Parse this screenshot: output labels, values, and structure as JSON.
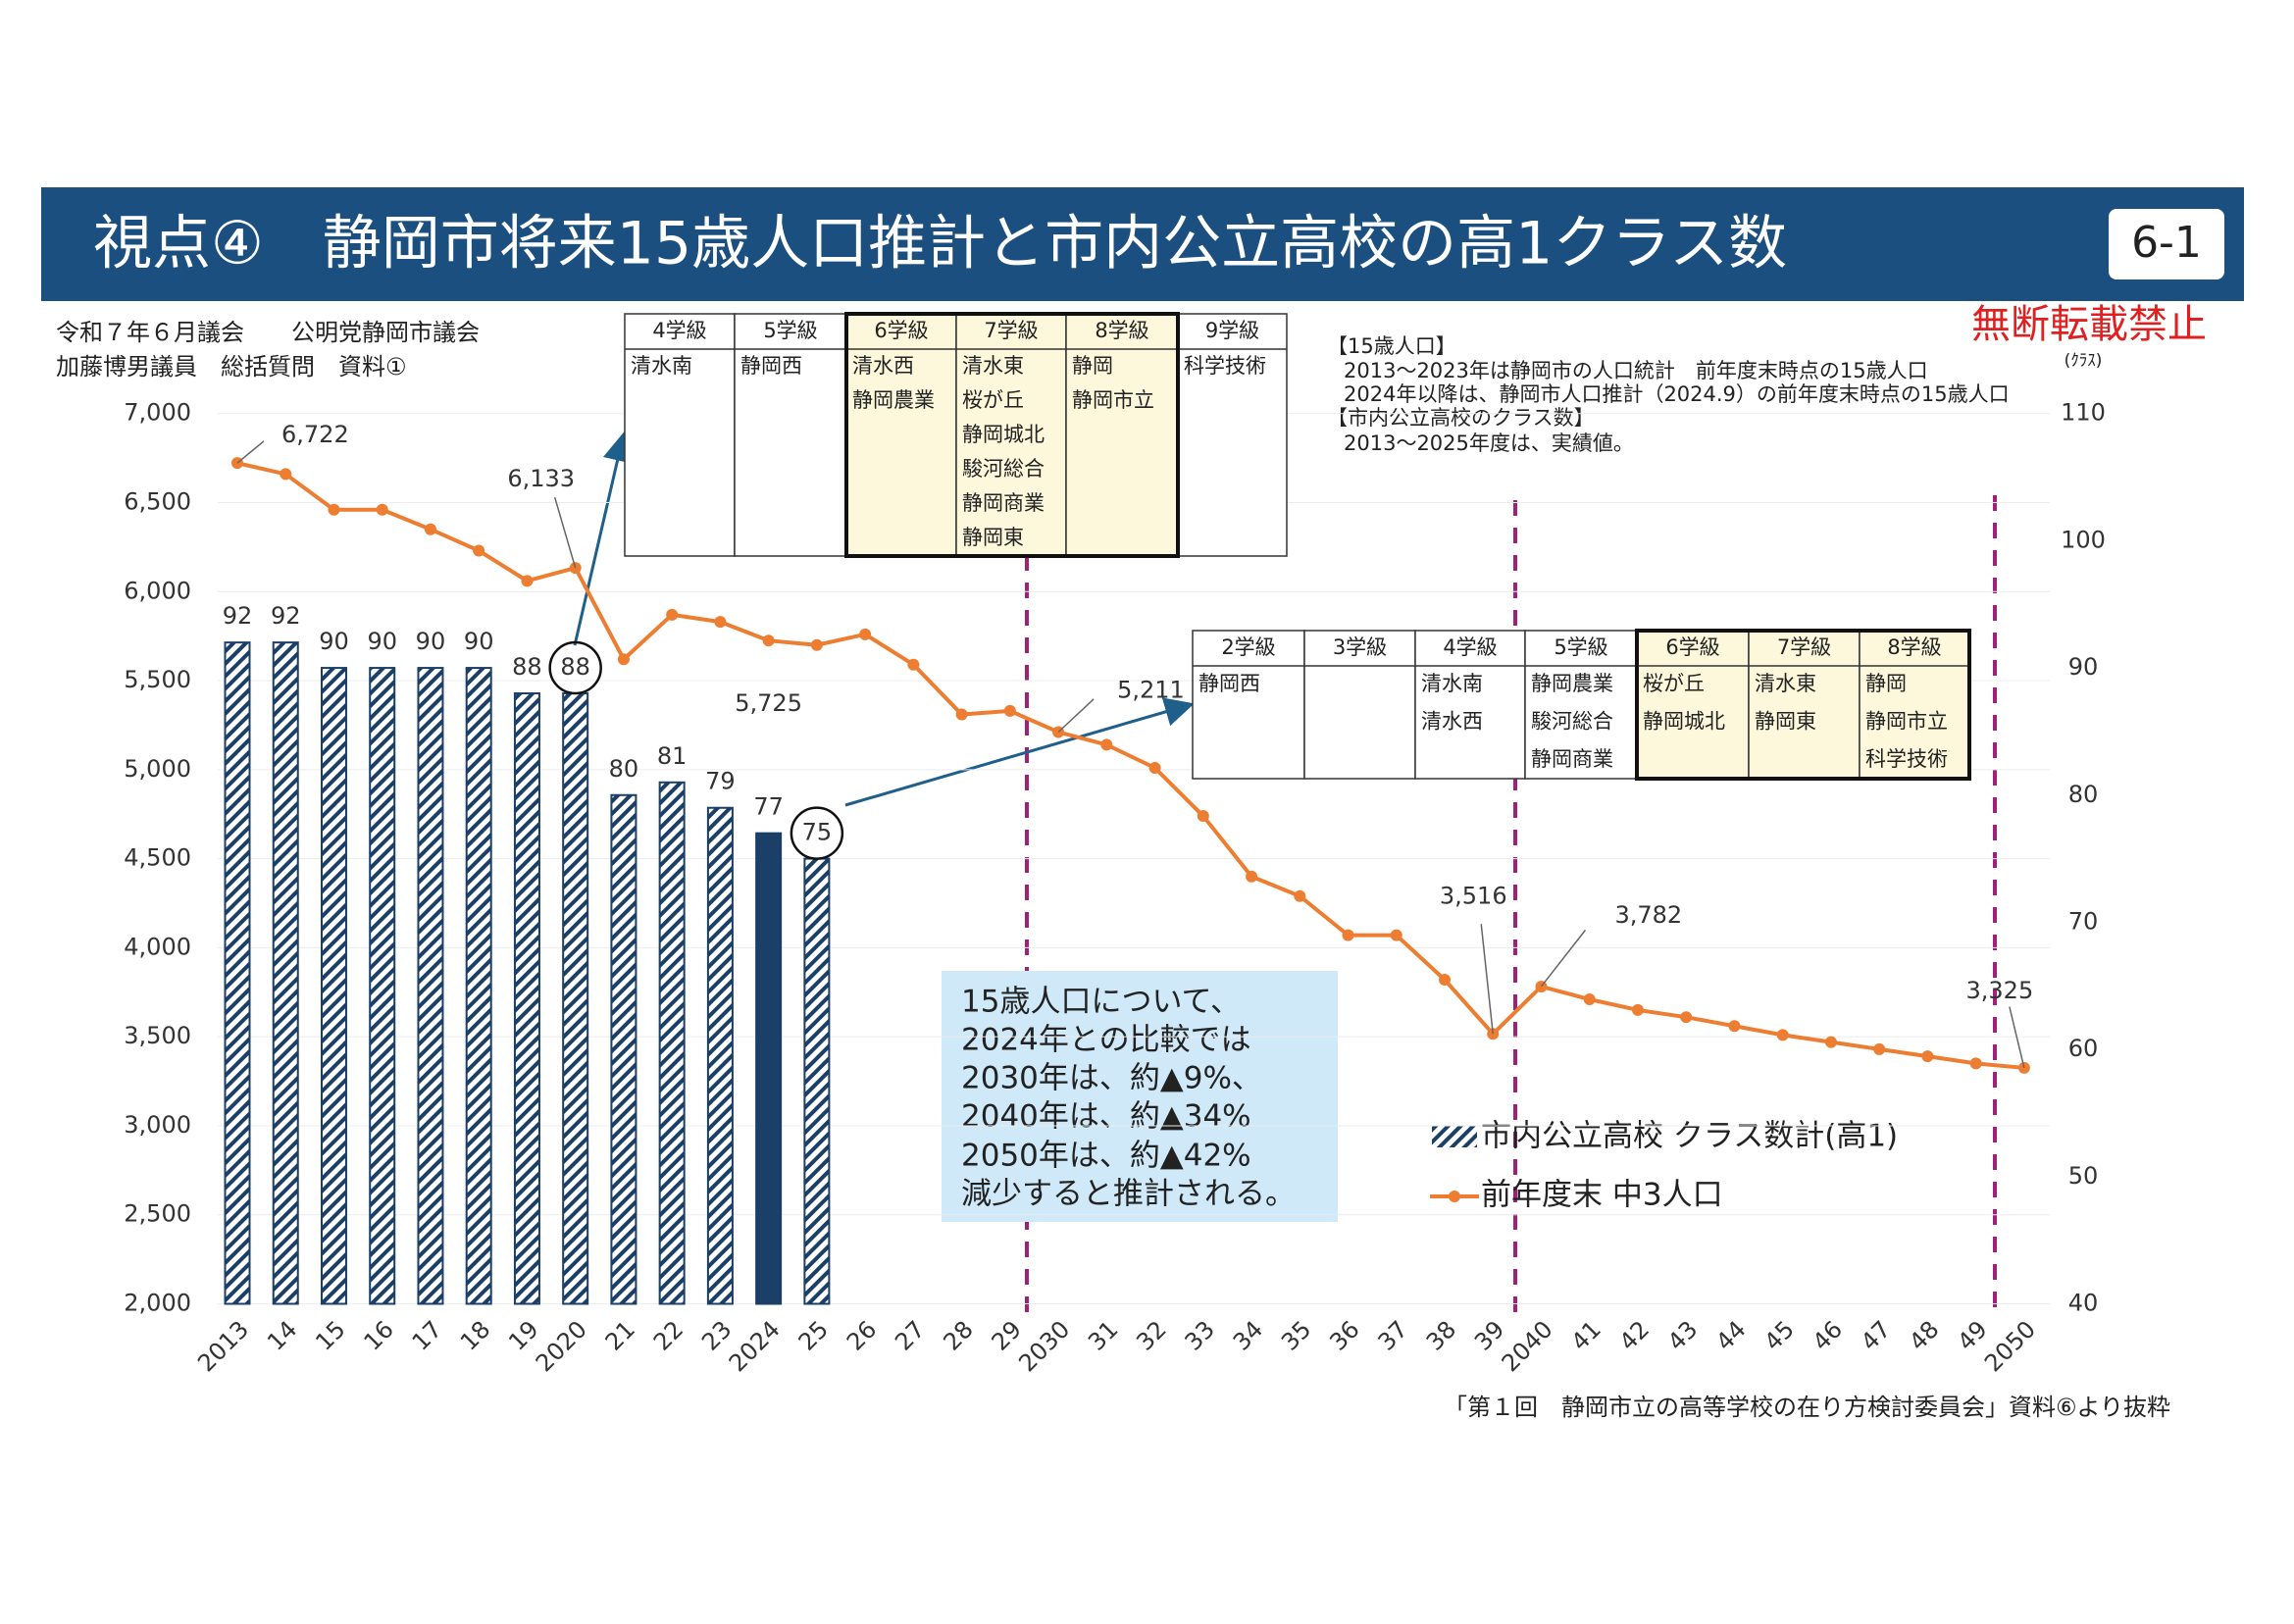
{
  "header": {
    "title": "視点④　静岡市将来15歳人口推計と市内公立高校の高1クラス数",
    "badge": "6-1",
    "meta": [
      "令和７年６月議会　　公明党静岡市議会",
      "加藤博男議員　総括質問　資料①"
    ],
    "notice": "無断転載禁止"
  },
  "notes": [
    "【15歳人口】",
    "2013～2023年は静岡市の人口統計　前年度末時点の15歳人口",
    "2024年以降は、静岡市人口推計（2024.9）の前年度末時点の15歳人口",
    "【市内公立高校のクラス数】",
    "2013～2025年度は、実績値。"
  ],
  "tables": [
    {
      "columns": [
        {
          "header": "4学級",
          "schools": [
            "清水南"
          ]
        },
        {
          "header": "5学級",
          "schools": [
            "静岡西"
          ]
        },
        {
          "header": "6学級",
          "schools": [
            "清水西",
            "静岡農業"
          ],
          "highlight": true
        },
        {
          "header": "7学級",
          "schools": [
            "清水東",
            "桜が丘",
            "静岡城北",
            "駿河総合",
            "静岡商業",
            "静岡東"
          ],
          "highlight": true
        },
        {
          "header": "8学級",
          "schools": [
            "静岡",
            "静岡市立"
          ],
          "highlight": true
        },
        {
          "header": "9学級",
          "schools": [
            "科学技術"
          ]
        }
      ]
    },
    {
      "columns": [
        {
          "header": "2学級",
          "schools": [
            "静岡西"
          ]
        },
        {
          "header": "3学級",
          "schools": []
        },
        {
          "header": "4学級",
          "schools": [
            "清水南",
            "清水西"
          ]
        },
        {
          "header": "5学級",
          "schools": [
            "静岡農業",
            "駿河総合",
            "静岡商業"
          ]
        },
        {
          "header": "6学級",
          "schools": [
            "桜が丘",
            "静岡城北"
          ],
          "highlight": true
        },
        {
          "header": "7学級",
          "schools": [
            "清水東",
            "静岡東"
          ],
          "highlight": true
        },
        {
          "header": "8学級",
          "schools": [
            "静岡",
            "静岡市立",
            "科学技術"
          ],
          "highlight": true
        }
      ]
    }
  ],
  "callout": [
    "15歳人口について、",
    "2024年との比較では",
    "2030年は、約▲9%、",
    "2040年は、約▲34%",
    "2050年は、約▲42%",
    "減少すると推計される。"
  ],
  "source": "「第１回　静岡市立の高等学校の在り方検討委員会」資料⑥より抜粋",
  "chart_data": {
    "type": "bar_line",
    "y2label": "(ｸﾗｽ)",
    "grid": true,
    "categories": [
      "2013",
      "14",
      "15",
      "16",
      "17",
      "18",
      "19",
      "2020",
      "21",
      "22",
      "23",
      "2024",
      "25",
      "26",
      "27",
      "28",
      "29",
      "2030",
      "31",
      "32",
      "33",
      "34",
      "35",
      "36",
      "37",
      "38",
      "39",
      "2040",
      "41",
      "42",
      "43",
      "44",
      "45",
      "46",
      "47",
      "48",
      "49",
      "2050"
    ],
    "ylim": [
      2000,
      7000
    ],
    "yticks": [
      {
        "value": 2000,
        "label": "2,000"
      },
      {
        "value": 2500,
        "label": "2,500"
      },
      {
        "value": 3000,
        "label": "3,000"
      },
      {
        "value": 3500,
        "label": "3,500"
      },
      {
        "value": 4000,
        "label": "4,000"
      },
      {
        "value": 4500,
        "label": "4,500"
      },
      {
        "value": 5000,
        "label": "5,000"
      },
      {
        "value": 5500,
        "label": "5,500"
      },
      {
        "value": 6000,
        "label": "6,000"
      },
      {
        "value": 6500,
        "label": "6,500"
      },
      {
        "value": 7000,
        "label": "7,000"
      }
    ],
    "y2lim": [
      40,
      110
    ],
    "y2ticks": [
      40,
      50,
      60,
      70,
      80,
      90,
      100,
      110
    ],
    "series": [
      {
        "name": "市内公立高校 クラス数計(高1)",
        "type": "bar",
        "axis": "y2",
        "color": "#1b3f66",
        "values": [
          92,
          92,
          90,
          90,
          90,
          90,
          88,
          88,
          80,
          81,
          79,
          77,
          75,
          null,
          null,
          null,
          null,
          null,
          null,
          null,
          null,
          null,
          null,
          null,
          null,
          null,
          null,
          null,
          null,
          null,
          null,
          null,
          null,
          null,
          null,
          null,
          null,
          null
        ],
        "styles": [
          "hatch",
          "hatch",
          "hatch",
          "hatch",
          "hatch",
          "hatch",
          "hatch",
          "hatch",
          "hatch",
          "hatch",
          "hatch",
          "solid",
          "hatch",
          null,
          null,
          null,
          null,
          null,
          null,
          null,
          null,
          null,
          null,
          null,
          null,
          null,
          null,
          null,
          null,
          null,
          null,
          null,
          null,
          null,
          null,
          null,
          null,
          null
        ]
      },
      {
        "name": "前年度末 中3人口",
        "type": "line",
        "color": "#ed7d31",
        "values": [
          6722,
          6660,
          6460,
          6460,
          6350,
          6230,
          6060,
          6133,
          5620,
          5870,
          5830,
          5725,
          5700,
          5760,
          5590,
          5310,
          5330,
          5211,
          5140,
          5010,
          4740,
          4400,
          4290,
          4070,
          4070,
          3820,
          3516,
          3782,
          3710,
          3650,
          3610,
          3560,
          3510,
          3470,
          3430,
          3390,
          3350,
          3325
        ],
        "value_labels": [
          "6,722",
          null,
          null,
          null,
          null,
          null,
          null,
          "6,133",
          null,
          null,
          null,
          "5,725",
          null,
          null,
          null,
          null,
          null,
          "5,211",
          null,
          null,
          null,
          null,
          null,
          null,
          null,
          null,
          "3,516",
          "3,782",
          null,
          null,
          null,
          null,
          null,
          null,
          null,
          null,
          null,
          "3,325"
        ]
      }
    ]
  }
}
